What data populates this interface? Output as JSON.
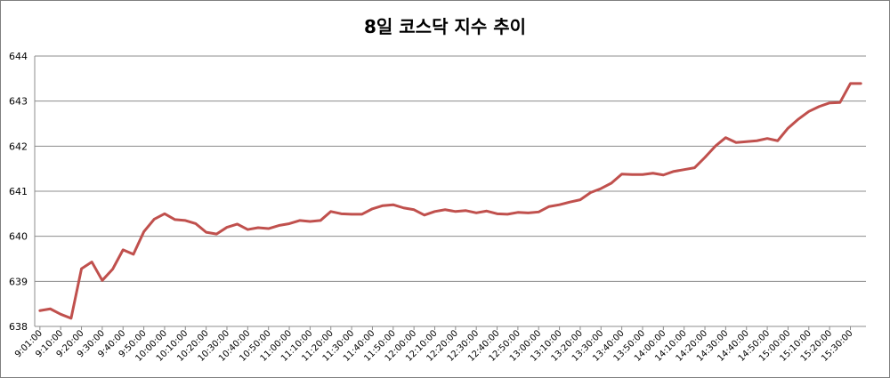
{
  "chart_data": {
    "type": "line",
    "title": "8일 코스닥 지수 추이",
    "xlabel": "",
    "ylabel": "",
    "ylim": [
      638,
      644
    ],
    "y_ticks": [
      "638",
      "639",
      "640",
      "641",
      "642",
      "643",
      "644"
    ],
    "grid": true,
    "legend": "none",
    "line_color": "#c0504d",
    "x_tick_labels": [
      "9:01:00",
      "9:10:00",
      "9:20:00",
      "9:30:00",
      "9:40:00",
      "9:50:00",
      "10:00:00",
      "10:10:00",
      "10:20:00",
      "10:30:00",
      "10:40:00",
      "10:50:00",
      "11:00:00",
      "11:10:00",
      "11:20:00",
      "11:30:00",
      "11:40:00",
      "11:50:00",
      "12:00:00",
      "12:10:00",
      "12:20:00",
      "12:30:00",
      "12:40:00",
      "12:50:00",
      "13:00:00",
      "13:10:00",
      "13:20:00",
      "13:30:00",
      "13:40:00",
      "13:50:00",
      "14:00:00",
      "14:10:00",
      "14:20:00",
      "14:30:00",
      "14:40:00",
      "14:50:00",
      "15:00:00",
      "15:10:00",
      "15:20:00",
      "15:30:00"
    ],
    "series": [
      {
        "values": [
          638.35,
          638.39,
          638.27,
          638.18,
          639.28,
          639.43,
          639.02,
          639.27,
          639.7,
          639.6,
          640.1,
          640.38,
          640.5,
          640.37,
          640.35,
          640.28,
          640.09,
          640.05,
          640.2,
          640.27,
          640.15,
          640.19,
          640.17,
          640.24,
          640.28,
          640.35,
          640.33,
          640.35,
          640.55,
          640.5,
          640.49,
          640.49,
          640.61,
          640.68,
          640.7,
          640.63,
          640.59,
          640.47,
          640.55,
          640.59,
          640.55,
          640.57,
          640.52,
          640.56,
          640.5,
          640.49,
          640.53,
          640.52,
          640.54,
          640.66,
          640.7,
          640.76,
          640.81,
          640.97,
          641.06,
          641.18,
          641.38,
          641.37,
          641.37,
          641.4,
          641.36,
          641.44,
          641.48,
          641.52,
          641.75,
          642.0,
          642.19,
          642.08,
          642.1,
          642.12,
          642.17,
          642.12,
          642.4,
          642.6,
          642.77,
          642.88,
          642.96,
          642.97,
          643.39,
          643.39
        ]
      }
    ]
  }
}
